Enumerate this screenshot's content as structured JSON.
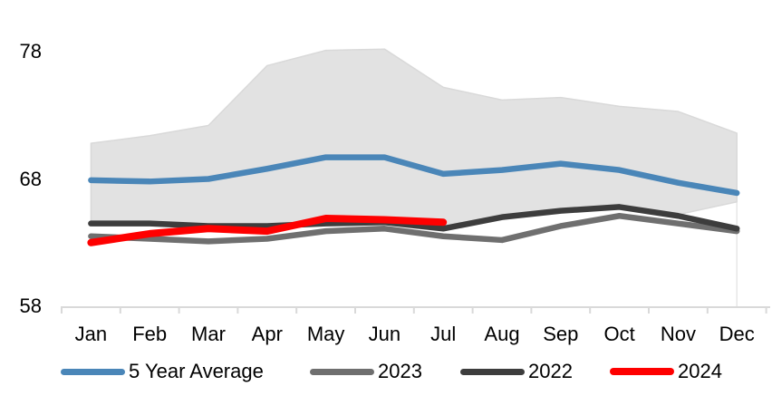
{
  "chart_data": {
    "type": "line",
    "categories": [
      "Jan",
      "Feb",
      "Mar",
      "Apr",
      "May",
      "Jun",
      "Jul",
      "Aug",
      "Sep",
      "Oct",
      "Nov",
      "Dec"
    ],
    "y_ticks": [
      78,
      68,
      58
    ],
    "ylim": [
      58,
      79
    ],
    "grid": "off",
    "legend_position": "bottom",
    "axis_color": "#d9d9d9",
    "dropline_color": "#e7e7e7",
    "band": {
      "name": "5-year-range-band",
      "fill": "#e2e2e2",
      "edge": "#d9d9d9",
      "top": [
        70.8,
        71.4,
        72.2,
        76.9,
        78.1,
        78.2,
        75.2,
        74.2,
        74.4,
        73.7,
        73.3,
        71.6
      ],
      "bottom": [
        64.5,
        64.5,
        64.3,
        64.3,
        64.6,
        64.7,
        64.1,
        65.0,
        65.5,
        65.8,
        65.2,
        66.2
      ]
    },
    "series": [
      {
        "name": "5 Year Average",
        "color": "#4A86B8",
        "width": 6.5,
        "values": [
          67.9,
          67.8,
          68.0,
          68.8,
          69.7,
          69.7,
          68.4,
          68.7,
          69.2,
          68.7,
          67.7,
          66.9
        ]
      },
      {
        "name": "2023",
        "color": "#6F6F6F",
        "width": 6.5,
        "values": [
          63.5,
          63.3,
          63.1,
          63.3,
          63.9,
          64.1,
          63.5,
          63.2,
          64.3,
          65.1,
          64.5,
          63.9
        ]
      },
      {
        "name": "2022",
        "color": "#3D3D3D",
        "width": 6.5,
        "values": [
          64.5,
          64.5,
          64.3,
          64.3,
          64.5,
          64.6,
          64.1,
          65.0,
          65.5,
          65.8,
          65.1,
          64.1
        ]
      },
      {
        "name": "2024",
        "color": "#FE0000",
        "width": 8,
        "values": [
          63.0,
          63.7,
          64.1,
          63.9,
          64.9,
          64.8,
          64.6
        ]
      }
    ],
    "legend": [
      {
        "label": "5 Year Average",
        "color": "#4A86B8",
        "thickness": 7
      },
      {
        "label": "2023",
        "color": "#6F6F6F",
        "thickness": 7
      },
      {
        "label": "2022",
        "color": "#3D3D3D",
        "thickness": 7
      },
      {
        "label": "2024",
        "color": "#FE0000",
        "thickness": 8
      }
    ]
  }
}
